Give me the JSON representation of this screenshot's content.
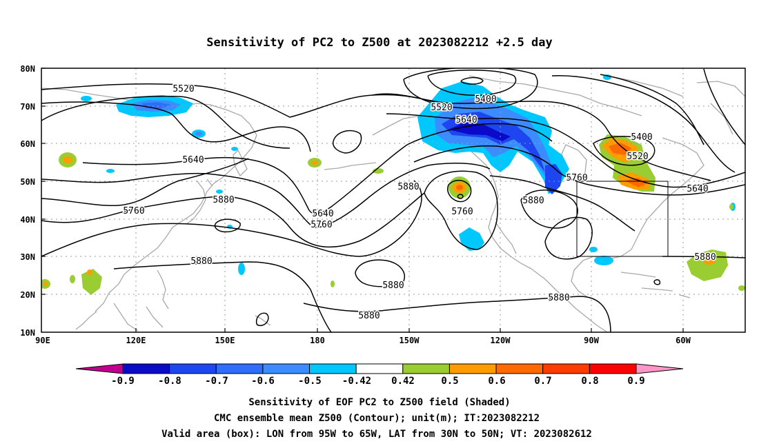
{
  "title": "Sensitivity of PC2 to Z500 at 2023082212 +2.5 day",
  "map": {
    "lon_range": [
      90,
      305
    ],
    "lat_range": [
      10,
      80
    ],
    "lat_ticks": [
      "10N",
      "20N",
      "30N",
      "40N",
      "50N",
      "60N",
      "70N",
      "80N"
    ],
    "lon_ticks": [
      "90E",
      "120E",
      "150E",
      "180",
      "150W",
      "120W",
      "90W",
      "60W"
    ],
    "grid": "dotted",
    "valid_box": {
      "lon": [
        -95,
        -65
      ],
      "lat": [
        30,
        50
      ]
    }
  },
  "contours": {
    "labels": [
      "5520",
      "5400",
      "5520",
      "5640",
      "5640",
      "5400",
      "5520",
      "5760",
      "5640",
      "5880",
      "5760",
      "5880",
      "5640",
      "5760",
      "5760",
      "5880",
      "5880",
      "5880",
      "5880",
      "5880",
      "5880"
    ]
  },
  "colorbar": {
    "labels": [
      "-0.9",
      "-0.8",
      "-0.7",
      "-0.6",
      "-0.5",
      "-0.42",
      "0.42",
      "0.5",
      "0.6",
      "0.7",
      "0.8",
      "0.9"
    ],
    "colors": [
      "#c0008c",
      "#0a0ac8",
      "#1e46f0",
      "#2e6ef8",
      "#3c8cff",
      "#00c8ff",
      "#ffffff",
      "#9acd32",
      "#ff9c00",
      "#ff6a00",
      "#ff3c00",
      "#ff0000",
      "#ff96c8"
    ]
  },
  "captions": {
    "line1": "Sensitivity of EOF PC2 to Z500 field (Shaded)",
    "line2": "CMC ensemble mean Z500 (Contour); unit(m); IT:2023082212",
    "line3": "Valid area (box): LON from 95W to 65W, LAT from 30N to 50N; VT: 2023082612"
  }
}
